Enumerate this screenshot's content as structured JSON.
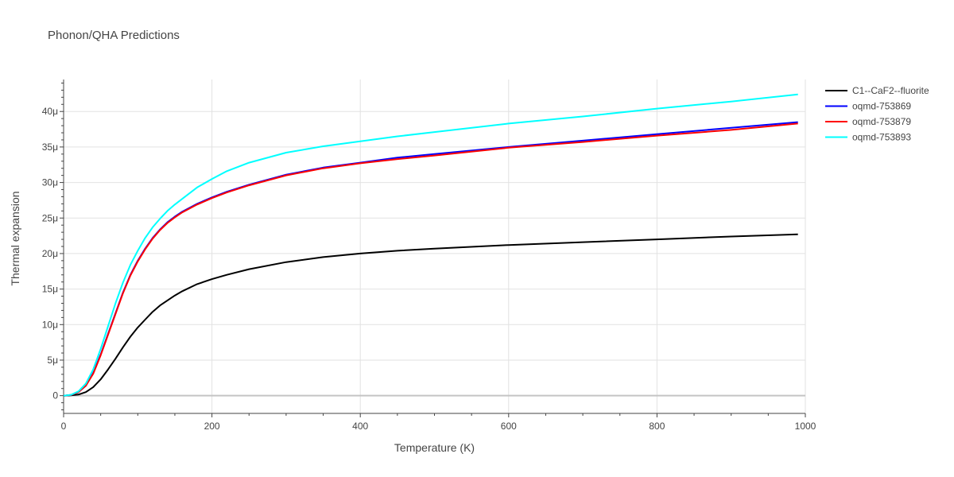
{
  "chart_data": {
    "type": "line",
    "title": "Phonon/QHA Predictions",
    "xlabel": "Temperature (K)",
    "ylabel": "Thermal expansion",
    "xlim": [
      0,
      1000
    ],
    "ylim": [
      -2.5e-06,
      4.45e-05
    ],
    "x_ticks": [
      0,
      200,
      400,
      600,
      800,
      1000
    ],
    "x_tick_labels": [
      "0",
      "200",
      "400",
      "600",
      "800",
      "1000"
    ],
    "y_ticks": [
      0,
      5e-06,
      1e-05,
      1.5e-05,
      2e-05,
      2.5e-05,
      3e-05,
      3.5e-05,
      4e-05
    ],
    "y_tick_labels": [
      "0",
      "5μ",
      "10μ",
      "15μ",
      "20μ",
      "25μ",
      "30μ",
      "35μ",
      "40μ"
    ],
    "grid": true,
    "legend_position": "top-right",
    "series": [
      {
        "name": "C1--CaF2--fluorite",
        "color": "#000000",
        "x": [
          0,
          10,
          20,
          30,
          40,
          50,
          60,
          70,
          80,
          90,
          100,
          110,
          120,
          130,
          140,
          150,
          160,
          180,
          200,
          220,
          250,
          300,
          350,
          400,
          450,
          500,
          600,
          700,
          800,
          900,
          990
        ],
        "y": [
          0,
          5e-08,
          1.5e-07,
          5e-07,
          1.2e-06,
          2.3e-06,
          3.7e-06,
          5.2e-06,
          6.8e-06,
          8.3e-06,
          9.6e-06,
          1.07e-05,
          1.18e-05,
          1.27e-05,
          1.34e-05,
          1.41e-05,
          1.47e-05,
          1.57e-05,
          1.64e-05,
          1.7e-05,
          1.78e-05,
          1.88e-05,
          1.95e-05,
          2e-05,
          2.04e-05,
          2.07e-05,
          2.12e-05,
          2.16e-05,
          2.2e-05,
          2.24e-05,
          2.27e-05
        ]
      },
      {
        "name": "oqmd-753869",
        "color": "#0000ff",
        "x": [
          0,
          10,
          20,
          30,
          40,
          50,
          60,
          70,
          80,
          90,
          100,
          110,
          120,
          130,
          140,
          150,
          160,
          180,
          200,
          220,
          250,
          300,
          350,
          400,
          450,
          500,
          600,
          700,
          800,
          900,
          990
        ],
        "y": [
          0,
          1e-07,
          5e-07,
          1.4e-06,
          3.2e-06,
          5.8e-06,
          8.7e-06,
          1.16e-05,
          1.45e-05,
          1.7e-05,
          1.9e-05,
          2.07e-05,
          2.22e-05,
          2.34e-05,
          2.44e-05,
          2.52e-05,
          2.59e-05,
          2.7e-05,
          2.79e-05,
          2.87e-05,
          2.97e-05,
          3.11e-05,
          3.21e-05,
          3.28e-05,
          3.35e-05,
          3.4e-05,
          3.5e-05,
          3.59e-05,
          3.68e-05,
          3.77e-05,
          3.85e-05
        ]
      },
      {
        "name": "oqmd-753879",
        "color": "#ff0000",
        "x": [
          0,
          10,
          20,
          30,
          40,
          50,
          60,
          70,
          80,
          90,
          100,
          110,
          120,
          130,
          140,
          150,
          160,
          180,
          200,
          220,
          250,
          300,
          350,
          400,
          450,
          500,
          600,
          700,
          800,
          900,
          990
        ],
        "y": [
          0,
          1e-07,
          5e-07,
          1.4e-06,
          3.1e-06,
          5.7e-06,
          8.6e-06,
          1.15e-05,
          1.44e-05,
          1.69e-05,
          1.89e-05,
          2.06e-05,
          2.21e-05,
          2.33e-05,
          2.43e-05,
          2.51e-05,
          2.58e-05,
          2.69e-05,
          2.78e-05,
          2.86e-05,
          2.96e-05,
          3.1e-05,
          3.2e-05,
          3.27e-05,
          3.33e-05,
          3.38e-05,
          3.49e-05,
          3.57e-05,
          3.66e-05,
          3.74e-05,
          3.83e-05
        ]
      },
      {
        "name": "oqmd-753893",
        "color": "#00ffff",
        "x": [
          0,
          10,
          20,
          30,
          40,
          50,
          60,
          70,
          80,
          90,
          100,
          110,
          120,
          130,
          140,
          150,
          160,
          180,
          200,
          220,
          250,
          300,
          350,
          400,
          450,
          500,
          600,
          700,
          800,
          900,
          990
        ],
        "y": [
          0,
          1.2e-07,
          6e-07,
          1.7e-06,
          3.7e-06,
          6.6e-06,
          9.8e-06,
          1.3e-05,
          1.59e-05,
          1.84e-05,
          2.04e-05,
          2.22e-05,
          2.37e-05,
          2.49e-05,
          2.6e-05,
          2.69e-05,
          2.77e-05,
          2.93e-05,
          3.05e-05,
          3.16e-05,
          3.28e-05,
          3.42e-05,
          3.51e-05,
          3.58e-05,
          3.65e-05,
          3.71e-05,
          3.83e-05,
          3.93e-05,
          4.04e-05,
          4.14e-05,
          4.24e-05
        ]
      }
    ]
  }
}
